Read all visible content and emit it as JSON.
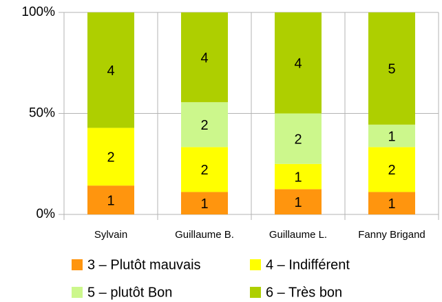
{
  "chart_data": {
    "type": "bar",
    "stacking": "percent",
    "categories": [
      "Sylvain",
      "Guillaume B.",
      "Guillaume L.",
      "Fanny Brigand"
    ],
    "series": [
      {
        "name": "3 – Plutôt mauvais",
        "color": "#ff950e",
        "values": [
          1,
          1,
          1,
          1
        ]
      },
      {
        "name": "4 – Indifférent",
        "color": "#ffff00",
        "values": [
          2,
          2,
          1,
          2
        ]
      },
      {
        "name": "5 – plutôt Bon",
        "color": "#ccf78c",
        "values": [
          null,
          2,
          2,
          1
        ]
      },
      {
        "name": "6 – Très bon",
        "color": "#aecf00",
        "values": [
          4,
          4,
          4,
          5
        ]
      }
    ],
    "ylim": [
      0,
      100
    ],
    "yticks": [
      {
        "value": 0,
        "label": "0%"
      },
      {
        "value": 50,
        "label": "50%"
      },
      {
        "value": 100,
        "label": "100%"
      }
    ],
    "grid": true,
    "legend": "bottom"
  }
}
